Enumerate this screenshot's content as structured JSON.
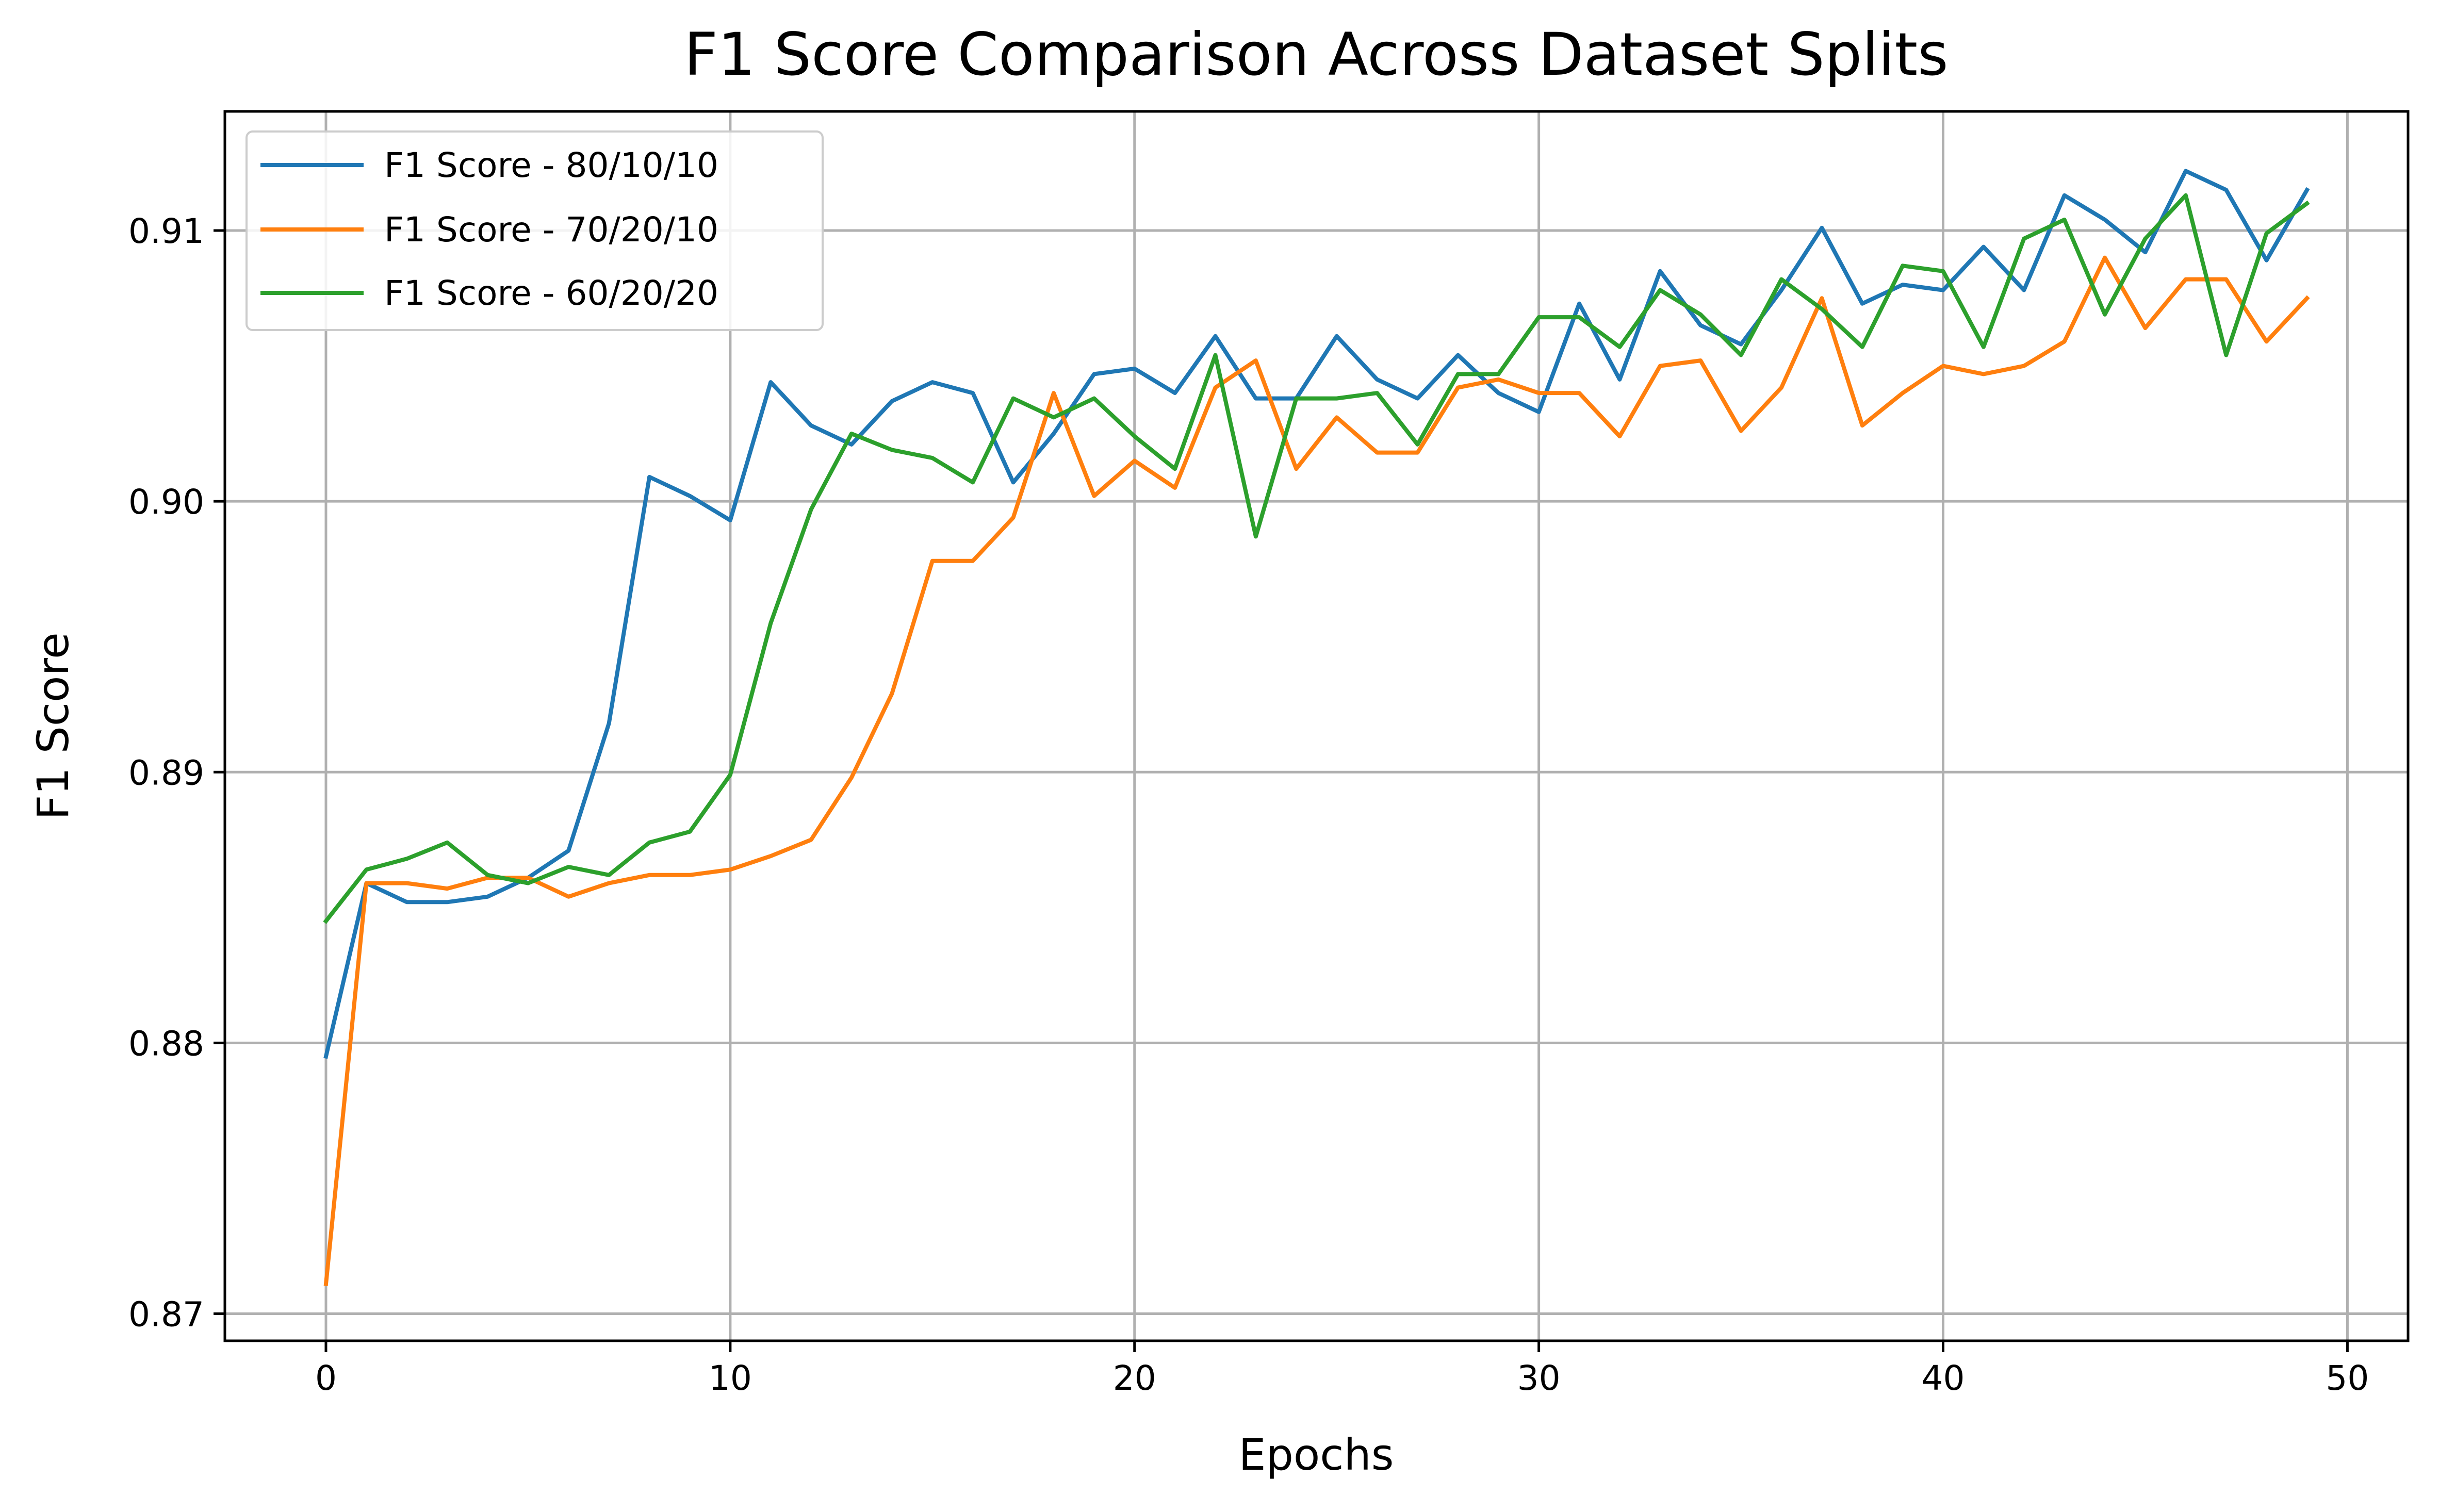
{
  "chart_data": {
    "type": "line",
    "title": "F1 Score Comparison Across Dataset Splits",
    "xlabel": "Epochs",
    "ylabel": "F1 Score",
    "xlim": [
      -2.5,
      51.5
    ],
    "ylim": [
      0.869,
      0.9144
    ],
    "xticks": [
      0,
      10,
      20,
      30,
      40,
      50
    ],
    "yticks": [
      0.87,
      0.88,
      0.89,
      0.9,
      0.91
    ],
    "xtick_labels": [
      "0",
      "10",
      "20",
      "30",
      "40",
      "50"
    ],
    "ytick_labels": [
      "0.87",
      "0.88",
      "0.89",
      "0.90",
      "0.91"
    ],
    "grid": true,
    "legend_position": "top-left",
    "x": [
      0,
      1,
      2,
      3,
      4,
      5,
      6,
      7,
      8,
      9,
      10,
      11,
      12,
      13,
      14,
      15,
      16,
      17,
      18,
      19,
      20,
      21,
      22,
      23,
      24,
      25,
      26,
      27,
      28,
      29,
      30,
      31,
      32,
      33,
      34,
      35,
      36,
      37,
      38,
      39,
      40,
      41,
      42,
      43,
      44,
      45,
      46,
      47,
      48,
      49
    ],
    "series": [
      {
        "name": "F1 Score - 80/10/10",
        "color": "#1f77b4",
        "values": [
          0.8795,
          0.8859,
          0.8852,
          0.8852,
          0.8854,
          0.8861,
          0.8871,
          0.8918,
          0.9009,
          0.9002,
          0.8993,
          0.9044,
          0.9028,
          0.9021,
          0.9037,
          0.9044,
          0.904,
          0.9007,
          0.9025,
          0.9047,
          0.9049,
          0.904,
          0.9061,
          0.9038,
          0.9038,
          0.9061,
          0.9045,
          0.9038,
          0.9054,
          0.904,
          0.9033,
          0.9073,
          0.9045,
          0.9085,
          0.9065,
          0.9058,
          0.9078,
          0.9101,
          0.9073,
          0.908,
          0.9078,
          0.9094,
          0.9078,
          0.9113,
          0.9104,
          0.9092,
          0.9122,
          0.9115,
          0.9089,
          0.9115
        ]
      },
      {
        "name": "F1 Score - 70/20/10",
        "color": "#ff7f0e",
        "values": [
          0.8711,
          0.8859,
          0.8859,
          0.8857,
          0.8861,
          0.8861,
          0.8854,
          0.8859,
          0.8862,
          0.8862,
          0.8864,
          0.8869,
          0.8875,
          0.8898,
          0.8929,
          0.8978,
          0.8978,
          0.8994,
          0.904,
          0.9002,
          0.9015,
          0.9005,
          0.9042,
          0.9052,
          0.9012,
          0.9031,
          0.9018,
          0.9018,
          0.9042,
          0.9045,
          0.904,
          0.904,
          0.9024,
          0.905,
          0.9052,
          0.9026,
          0.9042,
          0.9075,
          0.9028,
          0.904,
          0.905,
          0.9047,
          0.905,
          0.9059,
          0.909,
          0.9064,
          0.9082,
          0.9082,
          0.9059,
          0.9075
        ]
      },
      {
        "name": "F1 Score - 60/20/20",
        "color": "#2ca02c",
        "values": [
          0.8845,
          0.8864,
          0.8868,
          0.8874,
          0.8862,
          0.8859,
          0.8865,
          0.8862,
          0.8874,
          0.8878,
          0.8899,
          0.8955,
          0.8997,
          0.9025,
          0.9019,
          0.9016,
          0.9007,
          0.9038,
          0.9031,
          0.9038,
          0.9024,
          0.9012,
          0.9054,
          0.8987,
          0.9038,
          0.9038,
          0.904,
          0.9021,
          0.9047,
          0.9047,
          0.9068,
          0.9068,
          0.9057,
          0.9078,
          0.9069,
          0.9054,
          0.9082,
          0.9071,
          0.9057,
          0.9087,
          0.9085,
          0.9057,
          0.9097,
          0.9104,
          0.9069,
          0.9097,
          0.9113,
          0.9054,
          0.9099,
          0.911
        ]
      }
    ]
  }
}
